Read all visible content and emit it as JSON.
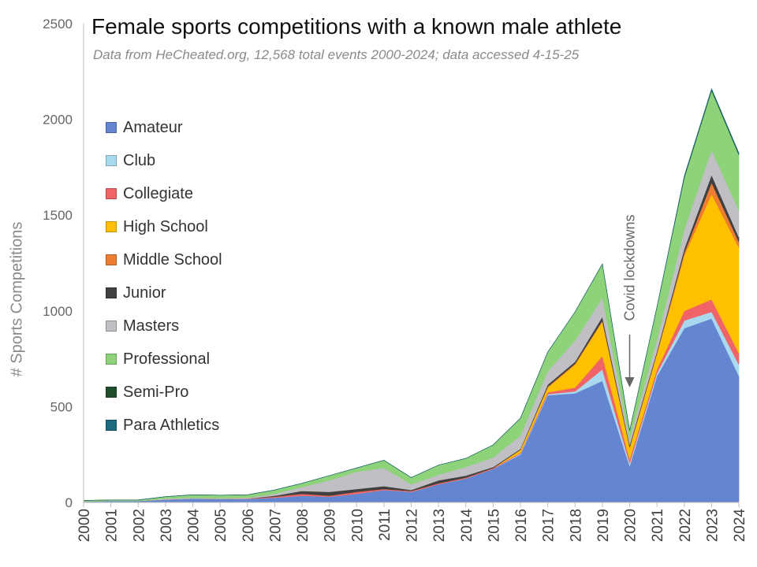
{
  "chart_data": {
    "type": "area",
    "stacked": true,
    "title": "Female sports competitions with a known male athlete",
    "subtitle": "Data from HeCheated.org, 12,568 total events 2000-2024; data accessed 4-15-25",
    "xlabel": "",
    "ylabel": "# Sports Competitions",
    "ylim": [
      0,
      2500
    ],
    "yticks": [
      0,
      500,
      1000,
      1500,
      2000,
      2500
    ],
    "grid": false,
    "legend_position": "left, inside plot",
    "x": [
      2000,
      2001,
      2002,
      2003,
      2004,
      2005,
      2006,
      2007,
      2008,
      2009,
      2010,
      2011,
      2012,
      2013,
      2014,
      2015,
      2016,
      2017,
      2018,
      2019,
      2020,
      2021,
      2022,
      2023,
      2024
    ],
    "series": [
      {
        "name": "Amateur",
        "color": "#6485cf",
        "values": [
          5,
          8,
          8,
          15,
          20,
          18,
          18,
          25,
          35,
          30,
          45,
          65,
          55,
          95,
          125,
          175,
          250,
          560,
          570,
          635,
          190,
          660,
          910,
          960,
          660
        ]
      },
      {
        "name": "Club",
        "color": "#a9d9ee",
        "values": [
          0,
          0,
          0,
          0,
          0,
          0,
          0,
          0,
          0,
          0,
          0,
          0,
          0,
          0,
          0,
          0,
          5,
          5,
          10,
          60,
          15,
          15,
          40,
          35,
          60
        ]
      },
      {
        "name": "Collegiate",
        "color": "#f06468",
        "values": [
          0,
          0,
          0,
          0,
          0,
          0,
          2,
          5,
          10,
          5,
          10,
          5,
          5,
          5,
          5,
          5,
          5,
          10,
          20,
          70,
          20,
          20,
          50,
          65,
          60
        ]
      },
      {
        "name": "High School",
        "color": "#ffc000",
        "values": [
          0,
          0,
          0,
          0,
          0,
          0,
          0,
          0,
          0,
          0,
          0,
          0,
          0,
          0,
          0,
          0,
          15,
          25,
          120,
          180,
          60,
          80,
          290,
          550,
          550
        ]
      },
      {
        "name": "Middle School",
        "color": "#ed7d31",
        "values": [
          0,
          0,
          0,
          0,
          0,
          0,
          0,
          0,
          0,
          0,
          0,
          0,
          0,
          0,
          0,
          0,
          0,
          5,
          5,
          5,
          5,
          5,
          15,
          60,
          30
        ]
      },
      {
        "name": "Junior",
        "color": "#404040",
        "values": [
          0,
          0,
          0,
          0,
          0,
          0,
          0,
          5,
          15,
          20,
          15,
          15,
          5,
          15,
          10,
          5,
          5,
          10,
          10,
          20,
          10,
          10,
          20,
          40,
          25
        ]
      },
      {
        "name": "Masters",
        "color": "#bfbfc4",
        "values": [
          0,
          0,
          0,
          5,
          5,
          5,
          5,
          10,
          20,
          60,
          90,
          95,
          30,
          30,
          45,
          50,
          70,
          70,
          110,
          100,
          30,
          60,
          100,
          130,
          140
        ]
      },
      {
        "name": "Professional",
        "color": "#8ed27a",
        "values": [
          5,
          5,
          5,
          10,
          15,
          15,
          15,
          20,
          20,
          25,
          20,
          40,
          35,
          50,
          45,
          65,
          90,
          100,
          150,
          175,
          45,
          170,
          270,
          310,
          290
        ]
      },
      {
        "name": "Semi-Pro",
        "color": "#1f4e2c",
        "values": [
          0,
          0,
          0,
          0,
          0,
          0,
          0,
          0,
          0,
          0,
          0,
          0,
          0,
          0,
          0,
          0,
          0,
          0,
          0,
          0,
          0,
          0,
          5,
          5,
          5
        ]
      },
      {
        "name": "Para Athletics",
        "color": "#1b6a7e",
        "values": [
          0,
          0,
          0,
          0,
          0,
          0,
          0,
          0,
          0,
          0,
          0,
          0,
          0,
          0,
          0,
          0,
          0,
          0,
          0,
          0,
          0,
          0,
          5,
          5,
          5
        ]
      }
    ],
    "annotations": [
      {
        "text": "Covid lockdowns",
        "x": 2020,
        "arrow_to_y": 200
      }
    ]
  }
}
